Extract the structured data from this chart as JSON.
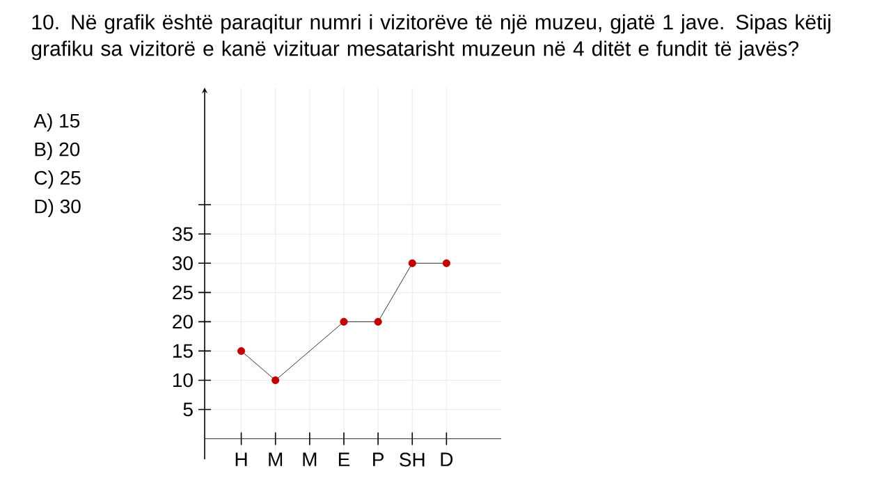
{
  "chart_data": {
    "type": "line",
    "title": "10. Në grafik është paraqitur numri i vizitorëve të një muzeu, gjatë 1 jave. Sipas këtij grafiku sa vizitorë e kanë vizituar mesatarisht muzeun në 4 ditët e fundit të javës?",
    "annotations": [
      "A)  15",
      "B)  20",
      "C)  25",
      "D)  30"
    ],
    "categories": [
      "H",
      "M",
      "M",
      "E",
      "P",
      "SH",
      "D"
    ],
    "series": [
      {
        "color": "#c00000",
        "values": [
          15,
          10,
          null,
          20,
          20,
          30,
          30
        ]
      }
    ],
    "ylim": [
      -3.5,
      60
    ],
    "yticks": [
      5,
      10,
      15,
      20,
      25,
      30,
      35,
      {
        "value": 40,
        "label": null
      }
    ],
    "grid": true,
    "marker": "circle",
    "line_style": "solid"
  }
}
